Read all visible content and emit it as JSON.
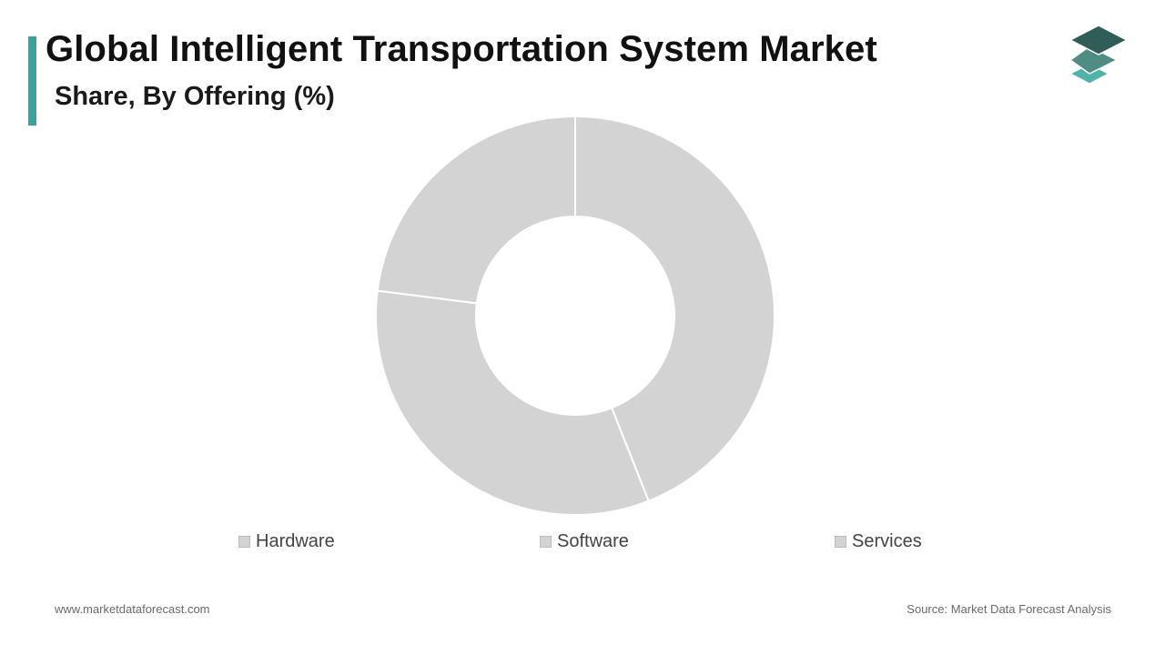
{
  "header": {
    "title": "Global Intelligent Transportation System Market",
    "subtitle": "Share, By Offering (%)",
    "accent_color": "#3aa39b"
  },
  "logo": {
    "icon": "stacked-layers-icon",
    "colors": [
      "#2f5d57",
      "#4f8c84",
      "#4fb3aa"
    ]
  },
  "chart_data": {
    "type": "pie",
    "style": "donut",
    "title": "Global Intelligent Transportation System Market",
    "subtitle": "Share, By Offering (%)",
    "categories": [
      "Hardware",
      "Software",
      "Services"
    ],
    "values": [
      44,
      33,
      23
    ],
    "unit": "%",
    "colors": [
      "#d4d3d4",
      "#d4d3d4",
      "#d4d3d4"
    ],
    "legend_position": "bottom",
    "data_labels_shown": false
  },
  "footer": {
    "website": "www.marketdataforecast.com",
    "source": "Source: Market Data Forecast Analysis"
  }
}
